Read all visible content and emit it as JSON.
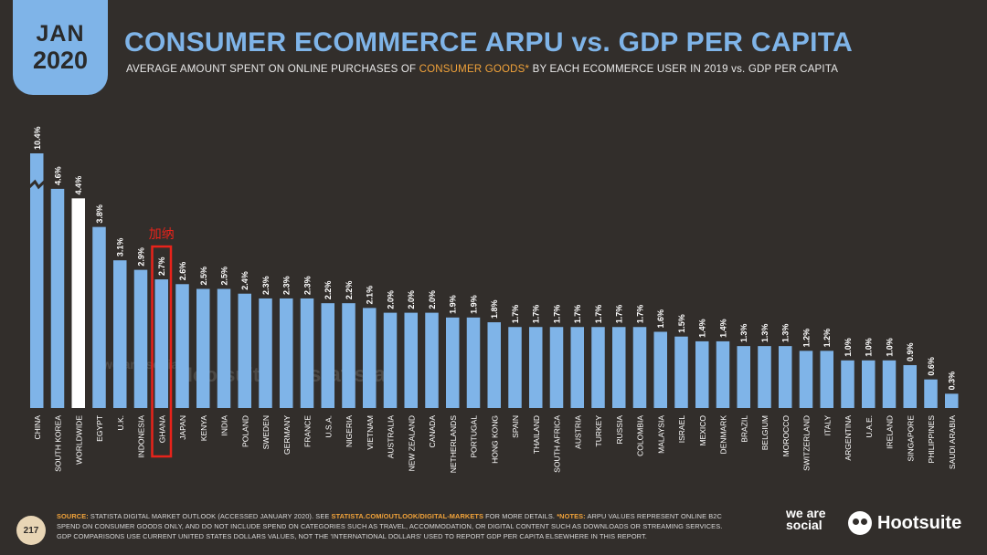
{
  "header": {
    "month": "JAN",
    "year": "2020",
    "title": "CONSUMER ECOMMERCE ARPU vs. GDP PER CAPITA",
    "subtitle_pre": "AVERAGE AMOUNT SPENT ON ONLINE PURCHASES OF ",
    "subtitle_highlight": "CONSUMER GOODS*",
    "subtitle_post": " BY EACH ECOMMERCE USER IN 2019 vs. GDP PER CAPITA"
  },
  "annotation": {
    "label": "加纳",
    "target": "GHANA",
    "color": "#e8231b"
  },
  "watermarks": [
    "we are social",
    "Hootsuite",
    "statista"
  ],
  "footer": {
    "page": "217",
    "source_label": "SOURCE:",
    "source_text": " STATISTA DIGITAL MARKET OUTLOOK (ACCESSED JANUARY 2020). SEE ",
    "source_link": "STATISTA.COM/OUTLOOK/DIGITAL-MARKETS",
    "source_after": " FOR MORE DETAILS. ",
    "notes_label": "*NOTES:",
    "notes_text": " ARPU VALUES REPRESENT ONLINE B2C SPEND ON CONSUMER GOODS ONLY, AND DO NOT INCLUDE SPEND ON CATEGORIES SUCH AS TRAVEL, ACCOMMODATION, OR DIGITAL CONTENT SUCH AS DOWNLOADS OR STREAMING SERVICES. GDP COMPARISONS USE CURRENT UNITED STATES DOLLARS VALUES, NOT THE 'INTERNATIONAL DOLLARS' USED TO REPORT GDP PER CAPITA ELSEWHERE IN THIS REPORT."
  },
  "logos": {
    "was": "we are social",
    "hootsuite": "Hootsuite"
  },
  "colors": {
    "bar": "#7fb4e8",
    "highlight_bar": "#ffffff",
    "background": "#322e2b",
    "accent": "#f2a33a"
  },
  "chart_data": {
    "type": "bar",
    "categories": [
      "CHINA",
      "SOUTH KOREA",
      "WORLDWIDE",
      "EGYPT",
      "U.K.",
      "INDONESIA",
      "GHANA",
      "JAPAN",
      "KENYA",
      "INDIA",
      "POLAND",
      "SWEDEN",
      "GERMANY",
      "FRANCE",
      "U.S.A.",
      "NIGERIA",
      "VIETNAM",
      "AUSTRALIA",
      "NEW ZEALAND",
      "CANADA",
      "NETHERLANDS",
      "PORTUGAL",
      "HONG KONG",
      "SPAIN",
      "THAILAND",
      "SOUTH AFRICA",
      "AUSTRIA",
      "TURKEY",
      "RUSSIA",
      "COLOMBIA",
      "MALAYSIA",
      "ISRAEL",
      "MEXICO",
      "DENMARK",
      "BRAZIL",
      "BELGIUM",
      "MOROCCO",
      "SWITZERLAND",
      "ITALY",
      "ARGENTINA",
      "U.A.E.",
      "IRELAND",
      "SINGAPORE",
      "PHILIPPINES",
      "SAUDI ARABIA"
    ],
    "values": [
      10.4,
      4.6,
      4.4,
      3.8,
      3.1,
      2.9,
      2.7,
      2.6,
      2.5,
      2.5,
      2.4,
      2.3,
      2.3,
      2.3,
      2.2,
      2.2,
      2.1,
      2.0,
      2.0,
      2.0,
      1.9,
      1.9,
      1.8,
      1.7,
      1.7,
      1.7,
      1.7,
      1.7,
      1.7,
      1.7,
      1.6,
      1.5,
      1.4,
      1.4,
      1.3,
      1.3,
      1.3,
      1.2,
      1.2,
      1.0,
      1.0,
      1.0,
      0.9,
      0.6,
      0.3
    ],
    "labels": [
      "10.4%",
      "4.6%",
      "4.4%",
      "3.8%",
      "3.1%",
      "2.9%",
      "2.7%",
      "2.6%",
      "2.5%",
      "2.5%",
      "2.4%",
      "2.3%",
      "2.3%",
      "2.3%",
      "2.2%",
      "2.2%",
      "2.1%",
      "2.0%",
      "2.0%",
      "2.0%",
      "1.9%",
      "1.9%",
      "1.8%",
      "1.7%",
      "1.7%",
      "1.7%",
      "1.7%",
      "1.7%",
      "1.7%",
      "1.7%",
      "1.6%",
      "1.5%",
      "1.4%",
      "1.4%",
      "1.3%",
      "1.3%",
      "1.3%",
      "1.2%",
      "1.2%",
      "1.0%",
      "1.0%",
      "1.0%",
      "0.9%",
      "0.6%",
      "0.3%"
    ],
    "highlight_category": "WORLDWIDE",
    "broken_axis_category": "CHINA",
    "legend": "none",
    "grid": false
  }
}
